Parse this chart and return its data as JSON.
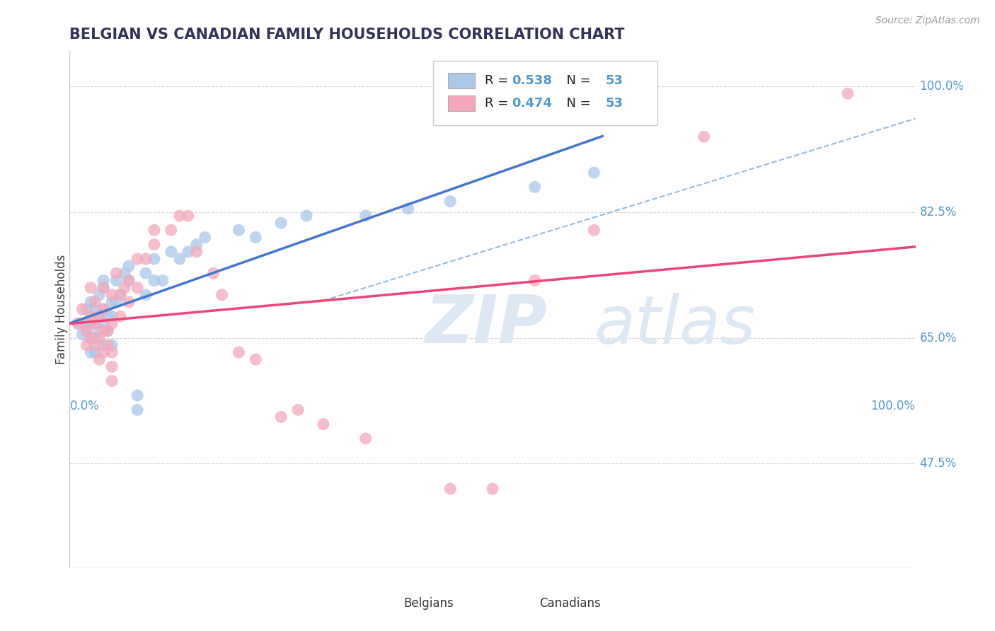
{
  "title": "BELGIAN VS CANADIAN FAMILY HOUSEHOLDS CORRELATION CHART",
  "source_text": "Source: ZipAtlas.com",
  "ylabel": "Family Households",
  "xlim": [
    0,
    1
  ],
  "ylim": [
    0.33,
    1.05
  ],
  "yticks": [
    0.475,
    0.65,
    0.825,
    1.0
  ],
  "ytick_labels": [
    "47.5%",
    "65.0%",
    "82.5%",
    "100.0%"
  ],
  "belgian_color": "#aac8ea",
  "canadian_color": "#f4a8bc",
  "belgian_line_color": "#4477cc",
  "canadian_line_color": "#ee4477",
  "dashed_line_color": "#99bbdd",
  "background_color": "#ffffff",
  "grid_color": "#cccccc",
  "axis_label_color": "#5599cc",
  "title_color": "#333355",
  "watermark_zip": "ZIP",
  "watermark_atlas": "atlas",
  "watermark_color": "#dde8f4",
  "belgian_scatter": [
    [
      0.01,
      0.67
    ],
    [
      0.015,
      0.655
    ],
    [
      0.02,
      0.66
    ],
    [
      0.02,
      0.69
    ],
    [
      0.02,
      0.67
    ],
    [
      0.025,
      0.63
    ],
    [
      0.025,
      0.65
    ],
    [
      0.025,
      0.67
    ],
    [
      0.025,
      0.7
    ],
    [
      0.03,
      0.65
    ],
    [
      0.03,
      0.67
    ],
    [
      0.03,
      0.63
    ],
    [
      0.03,
      0.69
    ],
    [
      0.035,
      0.66
    ],
    [
      0.035,
      0.68
    ],
    [
      0.035,
      0.71
    ],
    [
      0.04,
      0.64
    ],
    [
      0.04,
      0.67
    ],
    [
      0.04,
      0.69
    ],
    [
      0.04,
      0.72
    ],
    [
      0.04,
      0.73
    ],
    [
      0.045,
      0.66
    ],
    [
      0.045,
      0.68
    ],
    [
      0.05,
      0.64
    ],
    [
      0.05,
      0.68
    ],
    [
      0.05,
      0.7
    ],
    [
      0.055,
      0.7
    ],
    [
      0.055,
      0.73
    ],
    [
      0.06,
      0.71
    ],
    [
      0.065,
      0.74
    ],
    [
      0.07,
      0.73
    ],
    [
      0.07,
      0.75
    ],
    [
      0.08,
      0.55
    ],
    [
      0.08,
      0.57
    ],
    [
      0.09,
      0.71
    ],
    [
      0.09,
      0.74
    ],
    [
      0.1,
      0.73
    ],
    [
      0.1,
      0.76
    ],
    [
      0.11,
      0.73
    ],
    [
      0.12,
      0.77
    ],
    [
      0.13,
      0.76
    ],
    [
      0.14,
      0.77
    ],
    [
      0.15,
      0.78
    ],
    [
      0.16,
      0.79
    ],
    [
      0.2,
      0.8
    ],
    [
      0.22,
      0.79
    ],
    [
      0.25,
      0.81
    ],
    [
      0.28,
      0.82
    ],
    [
      0.35,
      0.82
    ],
    [
      0.4,
      0.83
    ],
    [
      0.45,
      0.84
    ],
    [
      0.55,
      0.86
    ],
    [
      0.62,
      0.88
    ]
  ],
  "canadian_scatter": [
    [
      0.01,
      0.67
    ],
    [
      0.015,
      0.69
    ],
    [
      0.02,
      0.64
    ],
    [
      0.02,
      0.66
    ],
    [
      0.025,
      0.65
    ],
    [
      0.025,
      0.68
    ],
    [
      0.025,
      0.72
    ],
    [
      0.03,
      0.64
    ],
    [
      0.03,
      0.67
    ],
    [
      0.03,
      0.7
    ],
    [
      0.035,
      0.62
    ],
    [
      0.035,
      0.65
    ],
    [
      0.035,
      0.68
    ],
    [
      0.04,
      0.63
    ],
    [
      0.04,
      0.66
    ],
    [
      0.04,
      0.69
    ],
    [
      0.04,
      0.72
    ],
    [
      0.045,
      0.64
    ],
    [
      0.045,
      0.66
    ],
    [
      0.05,
      0.59
    ],
    [
      0.05,
      0.61
    ],
    [
      0.05,
      0.63
    ],
    [
      0.05,
      0.67
    ],
    [
      0.05,
      0.71
    ],
    [
      0.055,
      0.74
    ],
    [
      0.06,
      0.68
    ],
    [
      0.06,
      0.71
    ],
    [
      0.065,
      0.72
    ],
    [
      0.07,
      0.7
    ],
    [
      0.07,
      0.73
    ],
    [
      0.08,
      0.72
    ],
    [
      0.08,
      0.76
    ],
    [
      0.09,
      0.76
    ],
    [
      0.1,
      0.78
    ],
    [
      0.1,
      0.8
    ],
    [
      0.12,
      0.8
    ],
    [
      0.13,
      0.82
    ],
    [
      0.14,
      0.82
    ],
    [
      0.15,
      0.77
    ],
    [
      0.17,
      0.74
    ],
    [
      0.18,
      0.71
    ],
    [
      0.2,
      0.63
    ],
    [
      0.22,
      0.62
    ],
    [
      0.25,
      0.54
    ],
    [
      0.27,
      0.55
    ],
    [
      0.3,
      0.53
    ],
    [
      0.35,
      0.51
    ],
    [
      0.45,
      0.44
    ],
    [
      0.5,
      0.44
    ],
    [
      0.55,
      0.73
    ],
    [
      0.62,
      0.8
    ],
    [
      0.75,
      0.93
    ],
    [
      0.92,
      0.99
    ]
  ],
  "legend_r1": "0.538",
  "legend_r2": "0.474",
  "legend_n": "53"
}
